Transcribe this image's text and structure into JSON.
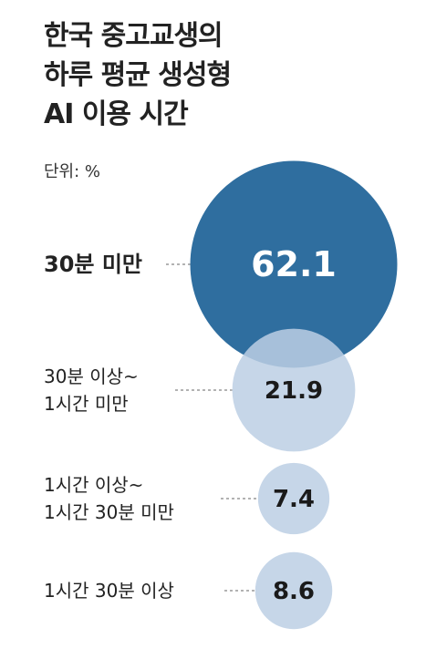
{
  "chart_data": {
    "type": "bubble",
    "title": "한국 중고교생의\n하루 평균 생성형\nAI 이용 시간",
    "unit": "단위: %",
    "categories": [
      "30분 미만",
      "30분 이상~\n1시간 미만",
      "1시간 이상~\n1시간 30분 미만",
      "1시간 30분 이상"
    ],
    "values": [
      62.1,
      21.9,
      7.4,
      8.6
    ],
    "colors": [
      "#2f6e9f",
      "#bccfe4",
      "#bccfe4",
      "#bccfe4"
    ]
  }
}
